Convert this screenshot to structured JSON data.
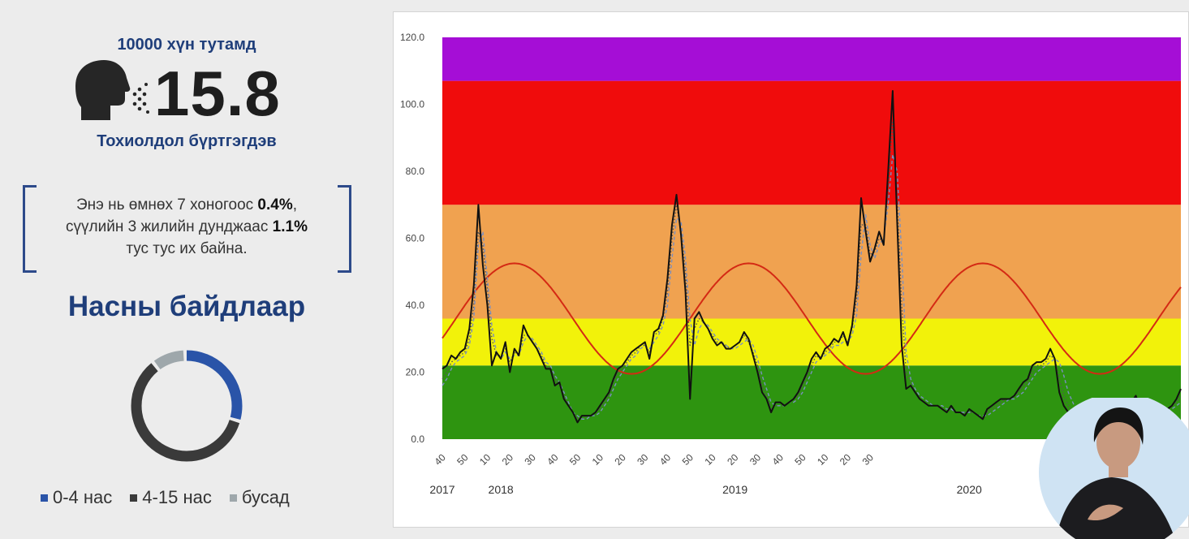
{
  "summary": {
    "per_label": "10000 хүн тутамд",
    "value": "15.8",
    "caption": "Тохиолдол бүртгэгдэв",
    "icon": "person-coughing-icon"
  },
  "notice": {
    "line1_prefix": "Энэ нь өмнөх 7 хоногоос ",
    "line1_value": "0.4%",
    "line1_suffix": ",",
    "line2_prefix": "сүүлийн 3 жилийн дунджаас ",
    "line2_value": "1.1%",
    "line3": "тус тус их байна."
  },
  "age_section": {
    "title": "Насны байдлаар",
    "donut": [
      {
        "label": "0-4 нас",
        "value": 30,
        "color": "#2a54a8"
      },
      {
        "label": "4-15 нас",
        "value": 60,
        "color": "#3a3a3a"
      },
      {
        "label": "бусад",
        "value": 10,
        "color": "#9ea7ab"
      }
    ]
  },
  "chart_data": {
    "type": "line",
    "ylim": [
      0,
      120
    ],
    "y_ticks": [
      "0.0",
      "20.0",
      "40.0",
      "60.0",
      "80.0",
      "100.0",
      "120.0"
    ],
    "x_tick_labels": [
      "40",
      "50",
      "10",
      "20",
      "30",
      "40",
      "50",
      "10",
      "20",
      "30",
      "40",
      "50",
      "10",
      "20",
      "30",
      "40",
      "50",
      "10",
      "20",
      "30"
    ],
    "year_labels": [
      {
        "label": "2017",
        "week_index": 0
      },
      {
        "label": "2018",
        "week_index": 13
      },
      {
        "label": "2019",
        "week_index": 65
      },
      {
        "label": "2020",
        "week_index": 117
      }
    ],
    "bands": [
      {
        "from": 0,
        "to": 22,
        "color": "#2e9410"
      },
      {
        "from": 22,
        "to": 36,
        "color": "#f2f20a"
      },
      {
        "from": 36,
        "to": 70,
        "color": "#f0a250"
      },
      {
        "from": 70,
        "to": 107,
        "color": "#f00c0c"
      },
      {
        "from": 107,
        "to": 120,
        "color": "#a50ed6"
      }
    ],
    "seasonal_curve": {
      "color": "#d42a14",
      "mean": 36,
      "amplitude": 16.5,
      "period_weeks": 52,
      "peak_week_index": 16
    },
    "series": [
      {
        "style": "solid",
        "color": "#111111",
        "values": [
          21,
          22,
          25,
          24,
          26,
          27,
          33,
          46,
          70,
          52,
          40,
          22,
          26,
          24,
          29,
          20,
          27,
          25,
          34,
          31,
          29,
          27,
          24,
          21,
          21,
          16,
          17,
          12,
          10,
          8,
          5,
          7,
          7,
          7,
          8,
          10,
          12,
          14,
          18,
          21,
          22,
          24,
          26,
          27,
          28,
          29,
          24,
          32,
          33,
          37,
          48,
          64,
          73,
          61,
          44,
          12,
          36,
          38,
          35,
          33,
          30,
          28,
          29,
          27,
          27,
          28,
          29,
          32,
          30,
          25,
          20,
          14,
          12,
          8,
          11,
          11,
          10,
          11,
          12,
          14,
          17,
          20,
          24,
          26,
          24,
          27,
          28,
          30,
          29,
          32,
          28,
          34,
          46,
          72,
          62,
          53,
          57,
          62,
          58,
          80,
          104,
          65,
          28,
          15,
          16,
          14,
          12,
          11,
          10,
          10,
          10,
          9,
          8,
          10,
          8,
          8,
          7,
          9,
          8,
          7,
          6,
          9,
          10,
          11,
          12,
          12,
          12,
          13,
          15,
          17,
          18,
          22,
          23,
          23,
          24,
          27,
          24,
          14,
          10,
          8,
          7,
          6,
          5,
          4,
          5,
          5,
          6,
          5,
          4,
          5,
          6,
          8,
          8,
          11,
          13,
          9,
          7,
          7,
          7,
          7,
          8,
          9,
          10,
          12,
          15
        ]
      },
      {
        "style": "dashed",
        "color": "#7a8fc0",
        "values": [
          16,
          18,
          21,
          23,
          24,
          25,
          28,
          36,
          58,
          62,
          48,
          34,
          26,
          24,
          26,
          24,
          25,
          25,
          29,
          31,
          30,
          28,
          26,
          23,
          22,
          19,
          17,
          14,
          11,
          8,
          7,
          6,
          6,
          7,
          7,
          8,
          10,
          12,
          15,
          18,
          20,
          22,
          24,
          25,
          27,
          28,
          27,
          29,
          31,
          34,
          40,
          54,
          66,
          65,
          54,
          36,
          28,
          33,
          35,
          34,
          32,
          30,
          29,
          28,
          27,
          27,
          28,
          29,
          30,
          28,
          24,
          19,
          15,
          11,
          10,
          10,
          10,
          11,
          11,
          12,
          14,
          17,
          20,
          23,
          24,
          25,
          26,
          28,
          28,
          29,
          29,
          31,
          37,
          55,
          67,
          58,
          54,
          58,
          60,
          70,
          85,
          80,
          55,
          26,
          18,
          15,
          13,
          12,
          11,
          10,
          10,
          10,
          9,
          9,
          8,
          8,
          8,
          8,
          8,
          7,
          7,
          7,
          8,
          9,
          10,
          11,
          12,
          12,
          13,
          14,
          16,
          18,
          20,
          21,
          22,
          23,
          24,
          23,
          19,
          14,
          11,
          8,
          7,
          6,
          5,
          5,
          5,
          5,
          5,
          5,
          5,
          6,
          7,
          8,
          9,
          9,
          8,
          7,
          7,
          7,
          7,
          8,
          9,
          10,
          11
        ]
      },
      {
        "style": "dotted",
        "color": "#555555",
        "values": [
          18,
          20,
          23,
          24,
          25,
          26,
          30,
          40,
          62,
          58,
          45,
          30,
          25,
          25,
          27,
          23,
          26,
          25,
          31,
          31,
          29,
          27,
          25,
          22,
          21,
          18,
          16,
          13,
          10,
          8,
          6,
          6,
          7,
          7,
          8,
          9,
          11,
          13,
          17,
          20,
          21,
          23,
          25,
          26,
          28,
          28,
          26,
          31,
          32,
          36,
          44,
          60,
          70,
          62,
          50,
          28,
          33,
          36,
          35,
          33,
          31,
          29,
          29,
          28,
          27,
          28,
          29,
          31,
          29,
          26,
          22,
          16,
          13,
          9,
          10,
          10,
          10,
          11,
          12,
          13,
          16,
          19,
          22,
          25,
          24,
          26,
          27,
          29,
          29,
          31,
          29,
          33,
          42,
          64,
          64,
          55,
          56,
          60,
          59,
          75,
          95,
          72,
          40,
          20,
          17,
          14,
          12,
          11,
          10,
          10,
          10,
          9,
          8,
          9,
          8,
          8,
          8,
          8,
          8,
          7,
          6,
          8,
          9,
          10,
          11,
          12,
          12,
          13,
          14,
          16,
          17,
          20,
          22,
          22,
          23,
          25,
          24,
          18,
          13,
          10,
          8,
          7,
          6,
          5,
          5,
          5,
          5,
          5,
          4,
          5,
          6,
          7,
          8,
          9,
          11,
          9,
          7,
          7,
          7,
          7,
          8,
          9,
          10,
          11,
          13
        ]
      }
    ]
  }
}
